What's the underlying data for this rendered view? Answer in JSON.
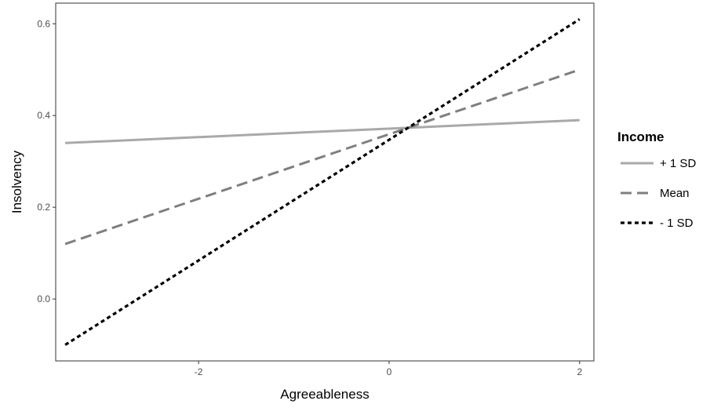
{
  "chart_data": {
    "type": "line",
    "xlabel": "Agreeableness",
    "ylabel": "Insolvency",
    "xlim": [
      -3.5,
      2.15
    ],
    "ylim": [
      -0.135,
      0.645
    ],
    "x_ticks": [
      -2,
      0,
      2
    ],
    "y_ticks": [
      0.0,
      0.2,
      0.4,
      0.6
    ],
    "x_tick_labels": [
      "-2",
      "0",
      "2"
    ],
    "y_tick_labels": [
      "0.0",
      "0.2",
      "0.4",
      "0.6"
    ],
    "grid": false,
    "legend": {
      "title": "Income",
      "placement": "right"
    },
    "series": [
      {
        "name": "+ 1 SD",
        "x": [
          -3.4,
          2.0
        ],
        "values": [
          0.34,
          0.39
        ],
        "color": "#a9a9a9",
        "style": "solid"
      },
      {
        "name": "Mean",
        "x": [
          -3.4,
          2.0
        ],
        "values": [
          0.12,
          0.5
        ],
        "color": "#7f7f7f",
        "style": "dashed"
      },
      {
        "name": "- 1 SD",
        "x": [
          -3.4,
          2.0
        ],
        "values": [
          -0.1,
          0.61
        ],
        "color": "#000000",
        "style": "dotted"
      }
    ]
  }
}
